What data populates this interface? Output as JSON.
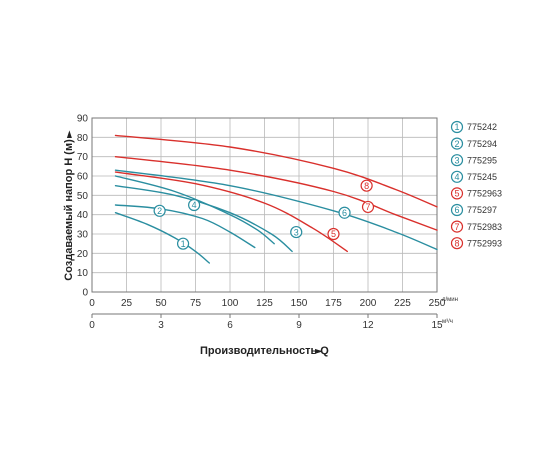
{
  "chart_data": {
    "type": "line",
    "xlabel": "Производительность Q",
    "ylabel": "Создаваемый напор H (м)",
    "x_unit": "л/мин",
    "x2_unit": "м³/ч",
    "xlim": [
      0,
      250
    ],
    "ylim": [
      0,
      90
    ],
    "x_ticks": [
      "0",
      "25",
      "50",
      "75",
      "100",
      "125",
      "150",
      "175",
      "200",
      "225",
      "250"
    ],
    "x2_ticks": [
      "0",
      "3",
      "6",
      "9",
      "12",
      "15"
    ],
    "y_ticks": [
      "0",
      "10",
      "20",
      "30",
      "40",
      "50",
      "60",
      "70",
      "80",
      "90"
    ],
    "grid": true,
    "legend_position": "right",
    "colors": {
      "teal": "#2a8ea0",
      "red": "#d9302c"
    },
    "series": [
      {
        "name": "775242",
        "label": "1",
        "color": "teal",
        "x": [
          17,
          40,
          60,
          75,
          85
        ],
        "y": [
          41,
          35,
          28,
          21,
          15
        ],
        "marker_at": [
          66,
          25
        ]
      },
      {
        "name": "775294",
        "label": "2",
        "color": "teal",
        "x": [
          17,
          50,
          80,
          100,
          118
        ],
        "y": [
          45,
          43,
          38,
          31,
          23
        ],
        "marker_at": [
          49,
          42
        ]
      },
      {
        "name": "775295",
        "label": "3",
        "color": "teal",
        "x": [
          17,
          60,
          100,
          130,
          145
        ],
        "y": [
          55,
          50,
          41,
          30,
          21
        ],
        "marker_at": [
          148,
          31
        ]
      },
      {
        "name": "775245",
        "label": "4",
        "color": "teal",
        "x": [
          17,
          60,
          100,
          120,
          132
        ],
        "y": [
          60,
          52,
          40,
          32,
          25
        ],
        "marker_at": [
          74,
          45
        ]
      },
      {
        "name": "7752963",
        "label": "5",
        "color": "red",
        "x": [
          17,
          75,
          125,
          160,
          185
        ],
        "y": [
          62,
          56,
          46,
          33,
          21
        ],
        "marker_at": [
          175,
          30
        ]
      },
      {
        "name": "775297",
        "label": "6",
        "color": "teal",
        "x": [
          17,
          100,
          175,
          220,
          250
        ],
        "y": [
          63,
          55,
          42,
          31,
          22
        ],
        "marker_at": [
          183,
          41
        ]
      },
      {
        "name": "7752983",
        "label": "7",
        "color": "red",
        "x": [
          17,
          100,
          175,
          220,
          250
        ],
        "y": [
          70,
          63,
          52,
          40,
          32
        ],
        "marker_at": [
          200,
          44
        ]
      },
      {
        "name": "7752993",
        "label": "8",
        "color": "red",
        "x": [
          17,
          100,
          175,
          220,
          250
        ],
        "y": [
          81,
          75,
          64,
          53,
          44
        ],
        "marker_at": [
          199,
          55
        ]
      }
    ]
  }
}
